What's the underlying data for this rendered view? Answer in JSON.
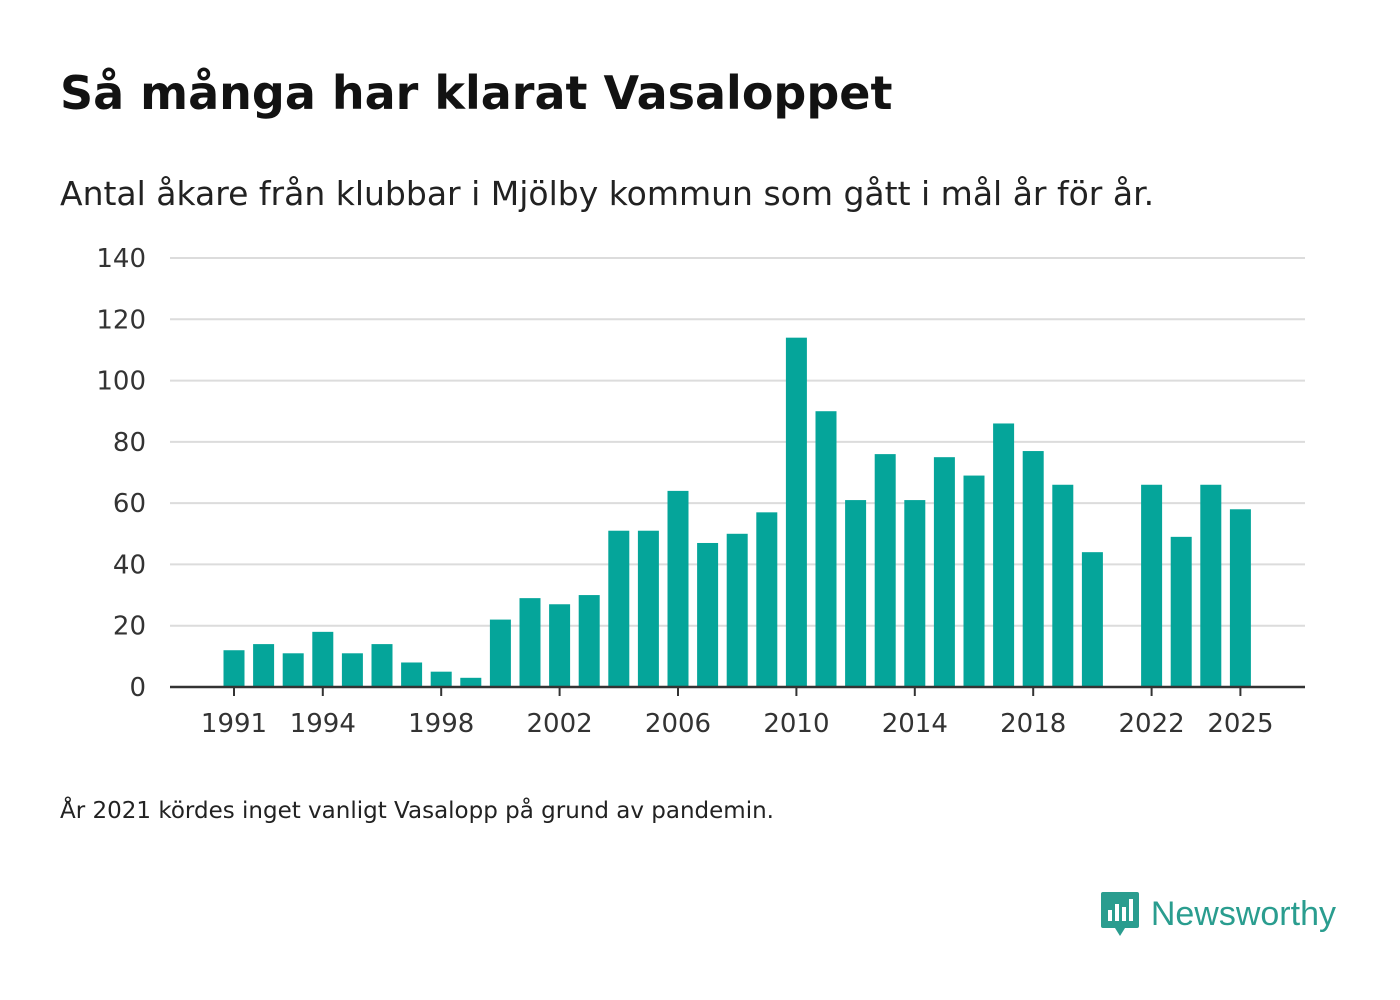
{
  "title": "Så många har klarat Vasaloppet",
  "subtitle": "Antal åkare från klubbar i Mjölby kommun som gått i mål år för år.",
  "note": "År 2021 kördes inget vanligt Vasalopp på grund av pandemin.",
  "brand": {
    "name": "Newsworthy",
    "icon": "newsworthy-logo-icon",
    "color": "#2a9d8f"
  },
  "chart_data": {
    "type": "bar",
    "title": "Så många har klarat Vasaloppet",
    "xlabel": "",
    "ylabel": "",
    "bar_color": "#05a59a",
    "ylim": [
      0,
      140
    ],
    "yticks": [
      0,
      20,
      40,
      60,
      80,
      100,
      120,
      140
    ],
    "xticks": [
      1991,
      1994,
      1998,
      2002,
      2006,
      2010,
      2014,
      2018,
      2022,
      2025
    ],
    "grid": true,
    "categories": [
      1991,
      1992,
      1993,
      1994,
      1995,
      1996,
      1997,
      1998,
      1999,
      2000,
      2001,
      2002,
      2003,
      2004,
      2005,
      2006,
      2007,
      2008,
      2009,
      2010,
      2011,
      2012,
      2013,
      2014,
      2015,
      2016,
      2017,
      2018,
      2019,
      2020,
      2021,
      2022,
      2023,
      2024,
      2025
    ],
    "values": [
      12,
      14,
      11,
      18,
      11,
      14,
      8,
      5,
      3,
      22,
      29,
      27,
      30,
      51,
      51,
      64,
      47,
      50,
      57,
      114,
      90,
      61,
      76,
      61,
      75,
      69,
      86,
      77,
      66,
      44,
      null,
      66,
      49,
      66,
      58
    ]
  }
}
